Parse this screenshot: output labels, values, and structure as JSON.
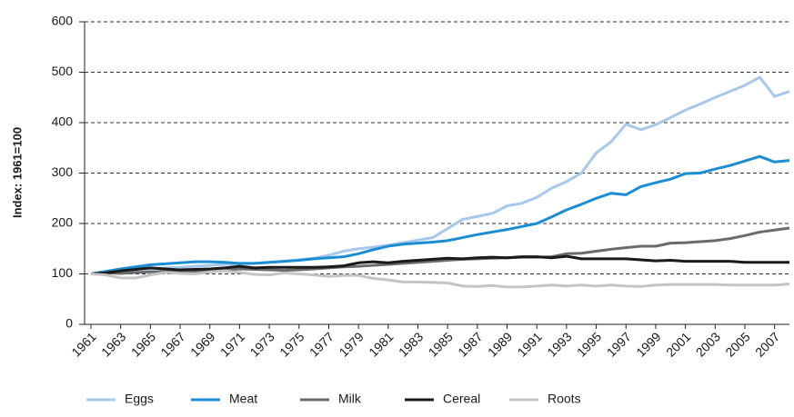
{
  "chart_data": {
    "type": "line",
    "ylabel": "Index: 1961=100",
    "x": [
      1961,
      1962,
      1963,
      1964,
      1965,
      1966,
      1967,
      1968,
      1969,
      1970,
      1971,
      1972,
      1973,
      1974,
      1975,
      1976,
      1977,
      1978,
      1979,
      1980,
      1981,
      1982,
      1983,
      1984,
      1985,
      1986,
      1987,
      1988,
      1989,
      1990,
      1991,
      1992,
      1993,
      1994,
      1995,
      1996,
      1997,
      1998,
      1999,
      2000,
      2001,
      2002,
      2003,
      2004,
      2005,
      2006,
      2007,
      2008
    ],
    "xlim": [
      1961,
      2008
    ],
    "xticks": [
      1961,
      1963,
      1965,
      1967,
      1969,
      1971,
      1973,
      1975,
      1977,
      1979,
      1981,
      1983,
      1985,
      1987,
      1989,
      1991,
      1993,
      1995,
      1997,
      1999,
      2001,
      2003,
      2005,
      2007
    ],
    "ylim": [
      0,
      600
    ],
    "yticks": [
      0,
      100,
      200,
      300,
      400,
      500,
      600
    ],
    "grid": true,
    "legend": "bottom",
    "series": [
      {
        "name": "Eggs",
        "color": "#a6c8ec",
        "values": [
          100,
          103,
          106,
          108,
          110,
          112,
          113,
          115,
          117,
          119,
          120,
          121,
          123,
          125,
          128,
          131,
          137,
          145,
          150,
          153,
          157,
          162,
          167,
          172,
          190,
          208,
          214,
          220,
          235,
          240,
          252,
          270,
          283,
          300,
          340,
          362,
          397,
          386,
          396,
          410,
          425,
          437,
          450,
          462,
          474,
          490,
          452,
          462
        ]
      },
      {
        "name": "Meat",
        "color": "#1a8dd4",
        "values": [
          100,
          105,
          110,
          114,
          118,
          120,
          122,
          124,
          124,
          123,
          121,
          121,
          123,
          125,
          127,
          130,
          132,
          134,
          140,
          148,
          155,
          159,
          161,
          163,
          166,
          172,
          178,
          183,
          188,
          194,
          200,
          213,
          227,
          238,
          250,
          260,
          257,
          273,
          281,
          288,
          299,
          300,
          308,
          315,
          324,
          333,
          322,
          325
        ]
      },
      {
        "name": "Milk",
        "color": "#6b6b6b",
        "values": [
          100,
          102,
          101,
          103,
          104,
          105,
          106,
          105,
          106,
          108,
          110,
          109,
          108,
          107,
          108,
          110,
          112,
          114,
          115,
          117,
          119,
          121,
          123,
          125,
          127,
          129,
          130,
          131,
          132,
          133,
          133,
          134,
          140,
          141,
          145,
          149,
          152,
          155,
          155,
          161,
          162,
          164,
          166,
          170,
          176,
          183,
          187,
          191
        ]
      },
      {
        "name": "Cereal",
        "color": "#1a1a1a",
        "values": [
          100,
          102,
          106,
          109,
          112,
          110,
          108,
          109,
          110,
          112,
          115,
          112,
          113,
          113,
          113,
          113,
          114,
          116,
          122,
          124,
          122,
          125,
          127,
          129,
          131,
          130,
          132,
          133,
          132,
          134,
          134,
          132,
          135,
          130,
          130,
          130,
          130,
          128,
          126,
          127,
          125,
          125,
          125,
          125,
          123,
          123,
          123,
          123
        ]
      },
      {
        "name": "Roots",
        "color": "#c4c4c4",
        "values": [
          100,
          98,
          92,
          92,
          98,
          103,
          101,
          100,
          104,
          106,
          103,
          99,
          98,
          102,
          100,
          98,
          95,
          97,
          97,
          91,
          88,
          84,
          84,
          83,
          82,
          76,
          75,
          77,
          74,
          74,
          76,
          78,
          76,
          78,
          76,
          78,
          76,
          75,
          78,
          79,
          79,
          79,
          79,
          78,
          78,
          78,
          78,
          80
        ]
      }
    ]
  }
}
